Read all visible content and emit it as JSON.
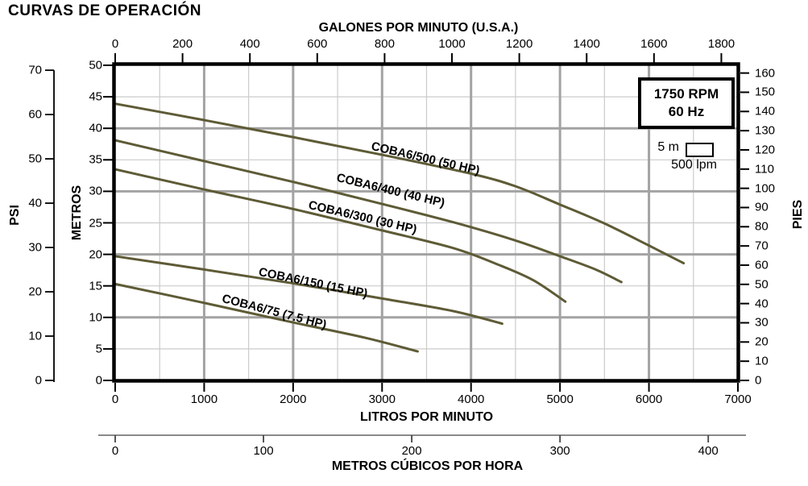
{
  "page_title": "CURVAS DE OPERACIÓN",
  "info_box": {
    "rpm": "1750 RPM",
    "freq": "60 Hz"
  },
  "scale_indicator": {
    "vertical": "5 m",
    "horizontal": "500 lpm"
  },
  "colors": {
    "curve": "#5e5b36",
    "grid_major": "#a3a3a3",
    "grid_minor": "#cbcbcb",
    "axis": "#000000",
    "m3h_axis": "#8a8a8a",
    "background": "#ffffff"
  },
  "chart_data": {
    "type": "line",
    "title": "CURVAS DE OPERACIÓN",
    "grid": {
      "x_minor_liters": 500,
      "x_major_liters": 1000,
      "y_minor_m": 5,
      "y_major_m": 10
    },
    "x_axis_liters": {
      "label": "LITROS POR MINUTO",
      "min": 0,
      "max": 7000,
      "ticks": [
        0,
        1000,
        2000,
        3000,
        4000,
        5000,
        6000,
        7000
      ]
    },
    "x_axis_gallons": {
      "label": "GALONES POR MINUTO (U.S.A.)",
      "min": 0,
      "max": 1800,
      "ticks": [
        0,
        200,
        400,
        600,
        800,
        1000,
        1200,
        1400,
        1600,
        1800
      ]
    },
    "x_axis_m3h": {
      "label": "METROS CÚBICOS POR HORA",
      "min": 0,
      "max": 400,
      "ticks": [
        0,
        100,
        200,
        300,
        400
      ]
    },
    "y_axis_meters": {
      "label": "METROS",
      "min": 0,
      "max": 50,
      "ticks": [
        0,
        5,
        10,
        15,
        20,
        25,
        30,
        35,
        40,
        45,
        50
      ]
    },
    "y_axis_psi": {
      "label": "PSI",
      "min": 0,
      "max": 70,
      "ticks": [
        0,
        10,
        20,
        30,
        40,
        50,
        60,
        70
      ]
    },
    "y_axis_pies": {
      "label": "PIES",
      "min": 0,
      "max": 160,
      "ticks": [
        0,
        10,
        20,
        30,
        40,
        50,
        60,
        70,
        80,
        90,
        100,
        110,
        120,
        130,
        140,
        150,
        160
      ]
    },
    "annotations": [
      "1750 RPM",
      "60 Hz",
      "5 m",
      "500 lpm"
    ],
    "series": [
      {
        "name": "COBA6/500 (50 HP)",
        "points_lpm_m": [
          [
            0,
            43.9
          ],
          [
            1000,
            41.3
          ],
          [
            2000,
            38.6
          ],
          [
            3000,
            35.8
          ],
          [
            4000,
            32.8
          ],
          [
            4500,
            30.8
          ],
          [
            5000,
            27.9
          ],
          [
            5500,
            24.9
          ],
          [
            6000,
            21.4
          ],
          [
            6390,
            18.6
          ]
        ]
      },
      {
        "name": "COBA6/400 (40 HP)",
        "points_lpm_m": [
          [
            0,
            38.1
          ],
          [
            1000,
            34.8
          ],
          [
            2000,
            31.5
          ],
          [
            3000,
            28.0
          ],
          [
            3800,
            25.1
          ],
          [
            4500,
            22.2
          ],
          [
            5000,
            19.7
          ],
          [
            5400,
            17.6
          ],
          [
            5690,
            15.6
          ]
        ]
      },
      {
        "name": "COBA6/300 (30 HP)",
        "points_lpm_m": [
          [
            0,
            33.5
          ],
          [
            1000,
            30.3
          ],
          [
            2000,
            27.2
          ],
          [
            3000,
            23.8
          ],
          [
            3800,
            21.0
          ],
          [
            4300,
            18.4
          ],
          [
            4700,
            15.9
          ],
          [
            5060,
            12.5
          ]
        ]
      },
      {
        "name": "COBA6/150 (15 HP)",
        "points_lpm_m": [
          [
            0,
            19.7
          ],
          [
            1000,
            17.6
          ],
          [
            2000,
            15.4
          ],
          [
            3000,
            13.0
          ],
          [
            3800,
            11.0
          ],
          [
            4350,
            9.0
          ]
        ]
      },
      {
        "name": "COBA6/75 (7.5 HP)",
        "points_lpm_m": [
          [
            0,
            15.3
          ],
          [
            1000,
            12.3
          ],
          [
            2000,
            9.2
          ],
          [
            2800,
            6.8
          ],
          [
            3400,
            4.6
          ]
        ]
      }
    ]
  }
}
